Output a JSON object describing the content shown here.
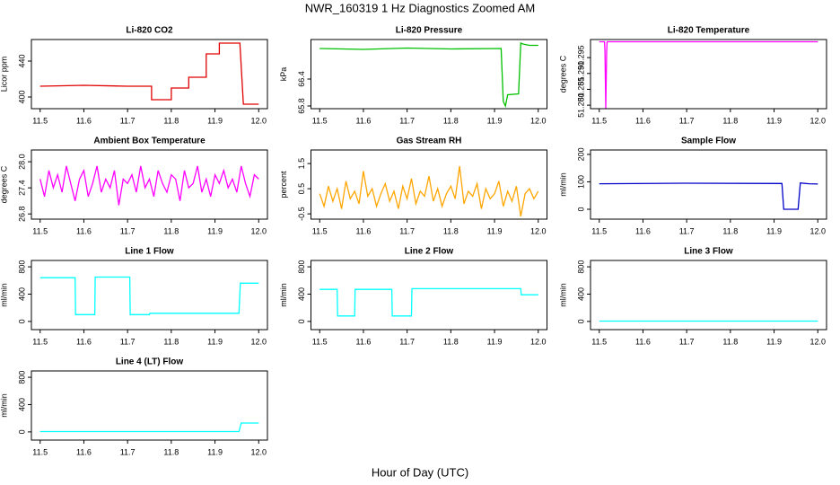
{
  "title": "NWR_160319  1 Hz Diagnostics Zoomed AM",
  "xlabel": "Hour of Day (UTC)",
  "chart_data": [
    {
      "type": "line",
      "title": "Li-820 CO2",
      "ylabel": "Licor ppm",
      "color": "#e00000",
      "xlim": [
        11.48,
        12.02
      ],
      "xticks": [
        11.5,
        11.6,
        11.7,
        11.8,
        11.9,
        {
          "value": 12,
          "label": "12.0"
        }
      ],
      "ylim": [
        387,
        464
      ],
      "yticks": [
        400,
        440
      ],
      "x": [
        11.5,
        11.6,
        11.7,
        11.755,
        11.755,
        11.8,
        11.8,
        11.84,
        11.84,
        11.88,
        11.88,
        11.91,
        11.91,
        11.957,
        11.965,
        12.0
      ],
      "values": [
        412,
        413,
        412,
        412,
        397,
        397,
        410,
        410,
        422,
        422,
        448,
        448,
        460,
        460,
        392,
        392
      ]
    },
    {
      "type": "line",
      "title": "Li-820 Pressure",
      "ylabel": "kPa",
      "color": "#00c000",
      "xlim": [
        11.48,
        12.02
      ],
      "xticks": [
        11.5,
        11.6,
        11.7,
        11.8,
        11.9,
        {
          "value": 12,
          "label": "12.0"
        }
      ],
      "ylim": [
        65.74,
        67.28
      ],
      "yticks": [
        65.8,
        66.4
      ],
      "x": [
        11.5,
        11.6,
        11.7,
        11.8,
        11.915,
        11.92,
        11.925,
        11.93,
        11.955,
        11.96,
        11.965,
        11.98,
        12.0
      ],
      "values": [
        67.08,
        67.06,
        67.09,
        67.07,
        67.08,
        65.9,
        65.8,
        66.05,
        66.07,
        67.2,
        67.18,
        67.15,
        67.15
      ]
    },
    {
      "type": "line",
      "title": "Li-820 Temperature",
      "ylabel": "degrees C",
      "color": "#ff00ff",
      "xlim": [
        11.48,
        12.02
      ],
      "xticks": [
        11.5,
        11.6,
        11.7,
        11.8,
        11.9,
        {
          "value": 12,
          "label": "12.0"
        }
      ],
      "ylim": [
        51.2789,
        51.3007
      ],
      "yticks": [
        {
          "value": 51.28,
          "label": "51.280"
        },
        51.285,
        {
          "value": 51.29,
          "label": "51.290"
        },
        51.295
      ],
      "x": [
        11.5,
        11.512,
        11.513,
        11.515,
        11.517,
        11.518,
        12.0
      ],
      "values": [
        51.3,
        51.3,
        51.297,
        51.279,
        51.297,
        51.3,
        51.3
      ]
    },
    {
      "type": "line",
      "title": "Ambient Box Temperature",
      "ylabel": "degrees C",
      "color": "#ff00ff",
      "xlim": [
        11.48,
        12.02
      ],
      "xticks": [
        11.5,
        11.6,
        11.7,
        11.8,
        11.9,
        {
          "value": 12,
          "label": "12.0"
        }
      ],
      "ylim": [
        26.68,
        28.27
      ],
      "yticks": [
        26.8,
        27.4,
        {
          "value": 28,
          "label": "28.0"
        }
      ],
      "x": [
        11.5,
        11.51,
        11.52,
        11.53,
        11.54,
        11.55,
        11.56,
        11.57,
        11.58,
        11.59,
        11.6,
        11.61,
        11.62,
        11.63,
        11.64,
        11.65,
        11.66,
        11.67,
        11.68,
        11.69,
        11.7,
        11.71,
        11.72,
        11.73,
        11.74,
        11.75,
        11.76,
        11.77,
        11.78,
        11.79,
        11.8,
        11.81,
        11.82,
        11.83,
        11.84,
        11.85,
        11.86,
        11.87,
        11.88,
        11.89,
        11.9,
        11.91,
        11.92,
        11.93,
        11.94,
        11.95,
        11.96,
        11.97,
        11.98,
        11.99,
        12.0
      ],
      "values": [
        27.6,
        27.2,
        27.8,
        27.4,
        27.7,
        27.3,
        27.9,
        27.5,
        27.1,
        27.6,
        27.8,
        27.2,
        27.5,
        27.9,
        27.3,
        27.6,
        27.4,
        27.8,
        27.0,
        27.6,
        27.5,
        27.7,
        27.3,
        27.9,
        27.4,
        27.6,
        27.2,
        27.8,
        27.5,
        27.3,
        27.7,
        27.6,
        27.1,
        27.8,
        27.4,
        27.5,
        27.9,
        27.3,
        27.6,
        27.2,
        27.7,
        27.5,
        27.8,
        27.4,
        27.6,
        27.3,
        27.9,
        27.5,
        27.2,
        27.7,
        27.6
      ]
    },
    {
      "type": "line",
      "title": "Gas Stream RH",
      "ylabel": "percent",
      "color": "#ffa500",
      "xlim": [
        11.48,
        12.02
      ],
      "xticks": [
        11.5,
        11.6,
        11.7,
        11.8,
        11.9,
        {
          "value": 12,
          "label": "12.0"
        }
      ],
      "ylim": [
        -0.71,
        2.04
      ],
      "yticks": [
        -0.5,
        0.5,
        1.5
      ],
      "x": [
        11.5,
        11.51,
        11.52,
        11.53,
        11.54,
        11.55,
        11.56,
        11.57,
        11.58,
        11.59,
        11.6,
        11.61,
        11.62,
        11.63,
        11.64,
        11.65,
        11.66,
        11.67,
        11.68,
        11.69,
        11.7,
        11.71,
        11.72,
        11.73,
        11.74,
        11.75,
        11.76,
        11.77,
        11.78,
        11.79,
        11.8,
        11.81,
        11.82,
        11.83,
        11.84,
        11.85,
        11.86,
        11.87,
        11.88,
        11.89,
        11.9,
        11.91,
        11.92,
        11.93,
        11.94,
        11.95,
        11.96,
        11.97,
        11.98,
        11.99,
        12.0
      ],
      "values": [
        0.3,
        -0.2,
        0.6,
        0.0,
        0.5,
        -0.3,
        0.8,
        0.1,
        0.4,
        -0.1,
        1.2,
        0.2,
        0.5,
        -0.2,
        0.3,
        0.7,
        0.0,
        0.4,
        -0.3,
        0.6,
        0.1,
        0.9,
        -0.1,
        0.4,
        0.2,
        1.0,
        0.0,
        0.5,
        -0.2,
        0.3,
        0.6,
        0.1,
        1.4,
        -0.1,
        0.4,
        0.2,
        0.7,
        -0.3,
        0.5,
        0.1,
        0.3,
        0.8,
        -0.2,
        0.4,
        0.0,
        0.6,
        -0.6,
        0.3,
        0.5,
        0.1,
        0.4
      ]
    },
    {
      "type": "line",
      "title": "Sample Flow",
      "ylabel": "ml/min",
      "color": "#0000c8",
      "xlim": [
        11.48,
        12.02
      ],
      "xticks": [
        11.5,
        11.6,
        11.7,
        11.8,
        11.9,
        {
          "value": 12,
          "label": "12.0"
        }
      ],
      "ylim": [
        -36,
        216
      ],
      "yticks": [
        0,
        100,
        200
      ],
      "x": [
        11.5,
        11.7,
        11.918,
        11.922,
        11.955,
        11.96,
        11.98,
        12.0
      ],
      "values": [
        93,
        95,
        94,
        0,
        0,
        96,
        93,
        92
      ]
    },
    {
      "type": "line",
      "title": "Line 1 Flow",
      "ylabel": "ml/min",
      "color": "#00ffff",
      "xlim": [
        11.48,
        12.02
      ],
      "xticks": [
        11.5,
        11.6,
        11.7,
        11.8,
        11.9,
        {
          "value": 12,
          "label": "12.0"
        }
      ],
      "ylim": [
        -120,
        893
      ],
      "yticks": [
        0,
        400,
        800
      ],
      "x": [
        11.5,
        11.58,
        11.581,
        11.625,
        11.626,
        11.705,
        11.706,
        11.75,
        11.751,
        11.955,
        11.958,
        12.0
      ],
      "values": [
        640,
        640,
        100,
        100,
        650,
        650,
        100,
        100,
        120,
        120,
        560,
        560
      ]
    },
    {
      "type": "line",
      "title": "Line 2 Flow",
      "ylabel": "ml/min",
      "color": "#00ffff",
      "xlim": [
        11.48,
        12.02
      ],
      "xticks": [
        11.5,
        11.6,
        11.7,
        11.8,
        11.9,
        {
          "value": 12,
          "label": "12.0"
        }
      ],
      "ylim": [
        -120,
        893
      ],
      "yticks": [
        0,
        400,
        800
      ],
      "x": [
        11.5,
        11.54,
        11.541,
        11.58,
        11.581,
        11.665,
        11.666,
        11.71,
        11.711,
        11.96,
        11.961,
        12.0
      ],
      "values": [
        470,
        470,
        80,
        80,
        470,
        470,
        80,
        80,
        480,
        480,
        390,
        390
      ]
    },
    {
      "type": "line",
      "title": "Line 3 Flow",
      "ylabel": "ml/min",
      "color": "#00ffff",
      "xlim": [
        11.48,
        12.02
      ],
      "xticks": [
        11.5,
        11.6,
        11.7,
        11.8,
        11.9,
        {
          "value": 12,
          "label": "12.0"
        }
      ],
      "ylim": [
        -120,
        893
      ],
      "yticks": [
        0,
        400,
        800
      ],
      "x": [
        11.5,
        12.0
      ],
      "values": [
        5,
        5
      ]
    },
    {
      "type": "line",
      "title": "Line 4 (LT) Flow",
      "ylabel": "ml/min",
      "color": "#00ffff",
      "xlim": [
        11.48,
        12.02
      ],
      "xticks": [
        11.5,
        11.6,
        11.7,
        11.8,
        11.9,
        {
          "value": 12,
          "label": "12.0"
        }
      ],
      "ylim": [
        -120,
        893
      ],
      "yticks": [
        0,
        400,
        800
      ],
      "x": [
        11.5,
        11.955,
        11.96,
        12.0
      ],
      "values": [
        5,
        5,
        130,
        130
      ]
    }
  ]
}
